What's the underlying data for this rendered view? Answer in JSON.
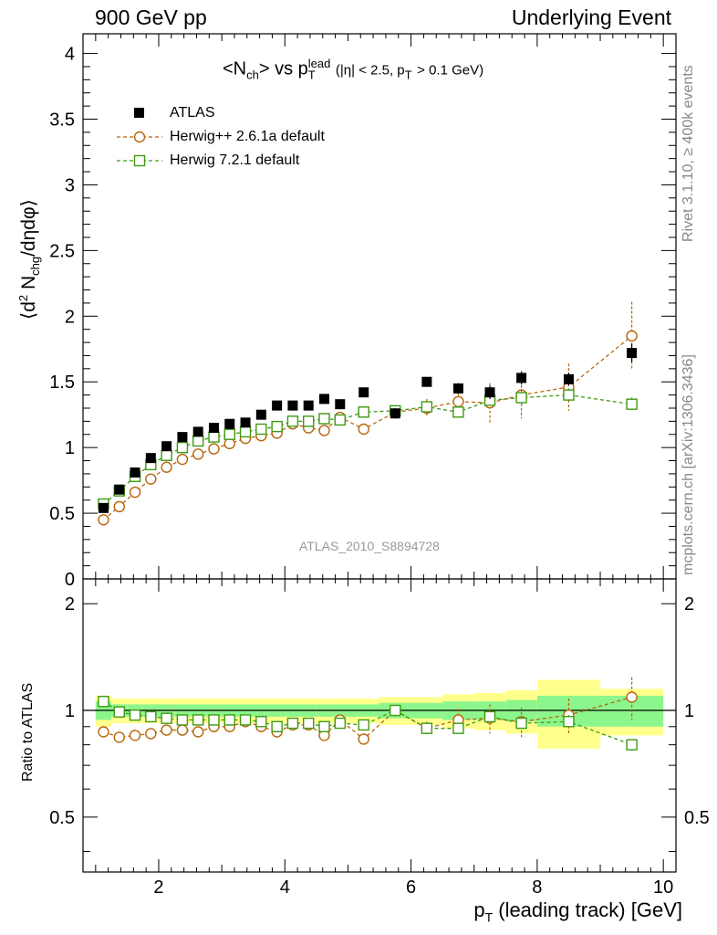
{
  "header": {
    "left": "900 GeV pp",
    "right": "Underlying Event"
  },
  "side_labels": {
    "top": "Rivet 3.1.10, ≥ 400k events",
    "bottom": "mcplots.cern.ch [arXiv:1306.3436]"
  },
  "watermark": "ATLAS_2010_S8894728",
  "colors": {
    "data": "#000000",
    "herwig261": "#b8650a",
    "herwig721": "#3f9a12",
    "band_outer": "#ffff8c",
    "band_inner": "#8cf58c"
  },
  "chart_data": [
    {
      "type": "scatter",
      "title_parts": {
        "main": "<N",
        "main_sub": "ch",
        "mid": "> vs p",
        "pt_sub": "T",
        "pt_sup": "lead",
        "cuts": "(|η| < 2.5, p",
        "cuts_sub": "T",
        "cuts_end": "> 0.1 GeV)"
      },
      "ylabel": "⟨d² N_chg/dηdφ⟩",
      "ylabel_parts": {
        "a": "⟨d",
        "sup": "2",
        "b": " N",
        "sub": "chg",
        "c": "/dηdφ⟩"
      },
      "xlim": [
        0.8,
        10.2
      ],
      "ylim": [
        0,
        4.15
      ],
      "yticks": [
        "0",
        "0.5",
        "1",
        "1.5",
        "2",
        "2.5",
        "3",
        "3.5",
        "4"
      ],
      "x": [
        1.125,
        1.375,
        1.625,
        1.875,
        2.125,
        2.375,
        2.625,
        2.875,
        3.125,
        3.375,
        3.625,
        3.875,
        4.125,
        4.375,
        4.625,
        4.875,
        5.25,
        5.75,
        6.25,
        6.75,
        7.25,
        7.75,
        8.5,
        9.5
      ],
      "series": [
        {
          "name": "ATLAS",
          "marker": "filled-square",
          "values": [
            0.54,
            0.68,
            0.81,
            0.92,
            1.01,
            1.08,
            1.12,
            1.15,
            1.18,
            1.19,
            1.25,
            1.32,
            1.32,
            1.32,
            1.37,
            1.33,
            1.42,
            1.26,
            1.5,
            1.45,
            1.42,
            1.53,
            1.52,
            1.72
          ],
          "errors": [
            0.01,
            0.01,
            0.01,
            0.01,
            0.01,
            0.01,
            0.01,
            0.01,
            0.01,
            0.01,
            0.01,
            0.01,
            0.02,
            0.02,
            0.02,
            0.02,
            0.02,
            0.04,
            0.03,
            0.04,
            0.05,
            0.05,
            0.05,
            0.07
          ]
        },
        {
          "name": "Herwig++ 2.6.1a default",
          "marker": "open-circle",
          "values": [
            0.45,
            0.55,
            0.66,
            0.76,
            0.85,
            0.91,
            0.95,
            0.99,
            1.03,
            1.07,
            1.09,
            1.11,
            1.18,
            1.15,
            1.13,
            1.23,
            1.14,
            1.27,
            1.3,
            1.35,
            1.34,
            1.4,
            1.46,
            1.85
          ],
          "errors": [
            0.01,
            0.01,
            0.01,
            0.01,
            0.01,
            0.01,
            0.01,
            0.01,
            0.01,
            0.01,
            0.02,
            0.02,
            0.02,
            0.03,
            0.03,
            0.03,
            0.03,
            0.04,
            0.07,
            0.1,
            0.15,
            0.18,
            0.18,
            0.26
          ]
        },
        {
          "name": "Herwig 7.2.1 default",
          "marker": "open-square",
          "values": [
            0.57,
            0.67,
            0.78,
            0.87,
            0.94,
            1.0,
            1.05,
            1.08,
            1.1,
            1.12,
            1.14,
            1.16,
            1.2,
            1.2,
            1.22,
            1.21,
            1.27,
            1.28,
            1.31,
            1.27,
            1.36,
            1.38,
            1.4,
            1.33
          ],
          "errors": [
            0.01,
            0.01,
            0.01,
            0.01,
            0.01,
            0.01,
            0.01,
            0.01,
            0.01,
            0.01,
            0.01,
            0.02,
            0.02,
            0.02,
            0.02,
            0.02,
            0.02,
            0.03,
            0.03,
            0.04,
            0.05,
            0.06,
            0.05,
            0.05
          ]
        }
      ]
    },
    {
      "type": "scatter",
      "ylabel": "Ratio to ATLAS",
      "xlabel_parts": {
        "a": "p",
        "sub": "T",
        "b": " (leading track) [GeV]"
      },
      "xlim": [
        0.8,
        10.2
      ],
      "ylim": [
        0.35,
        2.35
      ],
      "log_y": true,
      "xticks": [
        "2",
        "4",
        "6",
        "8",
        "10"
      ],
      "yticks": [
        "0.5",
        "1",
        "2"
      ],
      "bin_edges": [
        1.0,
        1.25,
        1.5,
        1.75,
        2.0,
        2.25,
        2.5,
        2.75,
        3.0,
        3.25,
        3.5,
        3.75,
        4.0,
        4.25,
        4.5,
        4.75,
        5.0,
        5.5,
        6.0,
        6.5,
        7.0,
        7.5,
        8.0,
        9.0,
        10.0
      ],
      "band_inner": [
        0.06,
        0.04,
        0.04,
        0.04,
        0.04,
        0.04,
        0.04,
        0.04,
        0.04,
        0.04,
        0.04,
        0.04,
        0.04,
        0.04,
        0.04,
        0.04,
        0.04,
        0.05,
        0.05,
        0.06,
        0.06,
        0.07,
        0.1,
        0.1
      ],
      "band_outer": [
        0.1,
        0.08,
        0.08,
        0.08,
        0.08,
        0.08,
        0.08,
        0.08,
        0.08,
        0.08,
        0.08,
        0.08,
        0.08,
        0.08,
        0.08,
        0.08,
        0.08,
        0.09,
        0.09,
        0.11,
        0.12,
        0.14,
        0.22,
        0.15
      ],
      "series": [
        {
          "name": "Herwig++ 2.6.1a default",
          "values": [
            0.87,
            0.84,
            0.85,
            0.86,
            0.88,
            0.88,
            0.87,
            0.9,
            0.9,
            0.93,
            0.9,
            0.87,
            0.91,
            0.91,
            0.85,
            0.94,
            0.83,
            1.0,
            0.89,
            0.94,
            0.95,
            0.93,
            0.97,
            1.09
          ],
          "errors": [
            0.01,
            0.01,
            0.01,
            0.01,
            0.01,
            0.01,
            0.01,
            0.01,
            0.01,
            0.01,
            0.01,
            0.01,
            0.01,
            0.02,
            0.02,
            0.03,
            0.02,
            0.03,
            0.04,
            0.07,
            0.09,
            0.09,
            0.11,
            0.15
          ]
        },
        {
          "name": "Herwig 7.2.1 default",
          "values": [
            1.06,
            0.99,
            0.97,
            0.96,
            0.95,
            0.94,
            0.94,
            0.94,
            0.94,
            0.94,
            0.93,
            0.9,
            0.92,
            0.92,
            0.9,
            0.92,
            0.91,
            1.0,
            0.89,
            0.89,
            0.96,
            0.92,
            0.93,
            0.8
          ],
          "errors": [
            0.01,
            0.01,
            0.01,
            0.01,
            0.01,
            0.01,
            0.01,
            0.01,
            0.01,
            0.01,
            0.01,
            0.01,
            0.01,
            0.01,
            0.01,
            0.02,
            0.02,
            0.03,
            0.03,
            0.03,
            0.04,
            0.04,
            0.04,
            0.03
          ]
        }
      ]
    }
  ]
}
